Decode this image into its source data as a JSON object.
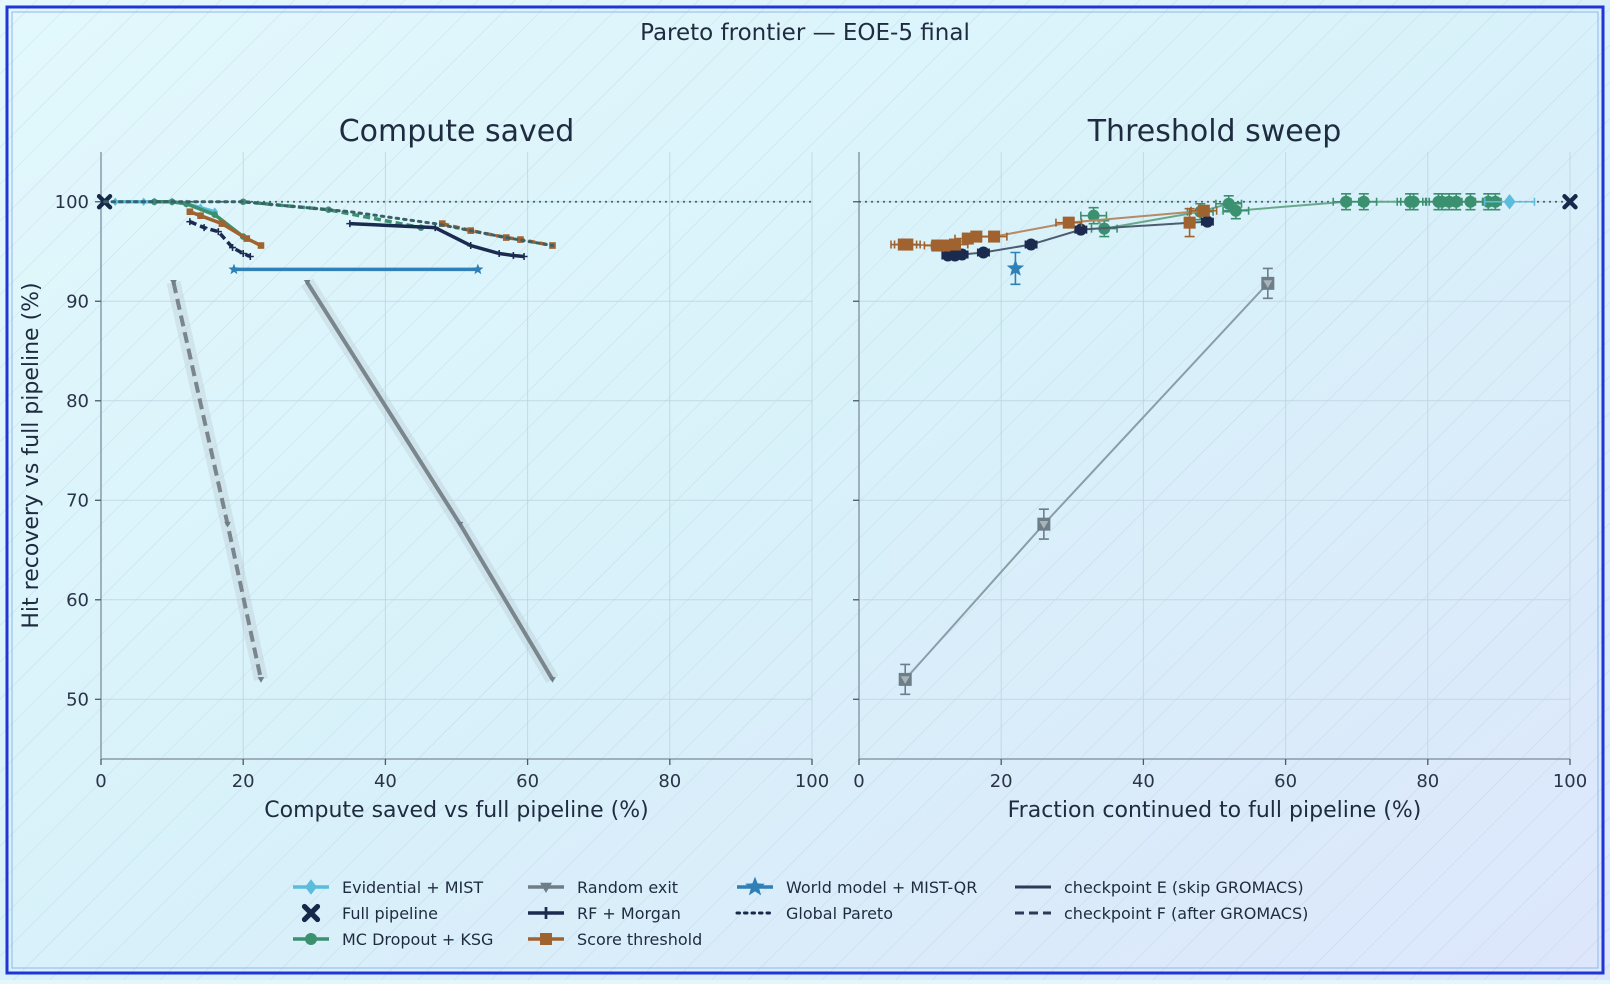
{
  "figure": {
    "title": "Pareto frontier — EOE-5 final",
    "colors": {
      "evidential": "#5bbcdc",
      "full": "#16294a",
      "mc": "#3b9070",
      "random": "#6e7e88",
      "rf": "#1b2b50",
      "score": "#a0622f",
      "world": "#2e80b6",
      "pareto": "#3a6068"
    }
  },
  "legend": [
    {
      "key": "evidential",
      "label": "Evidential + MIST",
      "marker": "diamond"
    },
    {
      "key": "full",
      "label": "Full pipeline",
      "marker": "x"
    },
    {
      "key": "mc",
      "label": "MC Dropout + KSG",
      "marker": "circle"
    },
    {
      "key": "random",
      "label": "Random exit",
      "marker": "triangle-down"
    },
    {
      "key": "rf",
      "label": "RF + Morgan",
      "marker": "plus"
    },
    {
      "key": "score",
      "label": "Score threshold",
      "marker": "square"
    },
    {
      "key": "world",
      "label": "World model + MIST-QR",
      "marker": "star"
    },
    {
      "key": "pareto",
      "label": "Global Pareto",
      "marker": "dotted"
    },
    {
      "key": "ckE",
      "label": "checkpoint E (skip GROMACS)",
      "marker": "solid"
    },
    {
      "key": "ckF",
      "label": "checkpoint F (after GROMACS)",
      "marker": "dashed"
    }
  ],
  "chart_data": [
    {
      "type": "line",
      "title": "Compute saved",
      "xlabel": "Compute saved vs full pipeline (%)",
      "ylabel": "Hit recovery vs full pipeline (%)",
      "xlim": [
        0,
        100
      ],
      "ylim": [
        44,
        105
      ],
      "xticks": [
        0,
        20,
        40,
        60,
        80,
        100
      ],
      "yticks": [
        50,
        60,
        70,
        80,
        90,
        100
      ],
      "reference_line_y": 100,
      "grid": true,
      "series": [
        {
          "key": "full",
          "marker": "x",
          "x": [
            0.5
          ],
          "y": [
            100
          ]
        },
        {
          "key": "evidential",
          "marker": "diamond",
          "x": [
            2,
            6,
            7.5,
            10,
            12,
            14,
            16
          ],
          "y": [
            100,
            100,
            100,
            100,
            99.8,
            99.4,
            99
          ]
        },
        {
          "key": "mc",
          "checkpoint": "E",
          "marker": "circle",
          "x": [
            7.5,
            10,
            12,
            16,
            20
          ],
          "y": [
            100,
            100,
            99.8,
            98.7,
            96.5
          ]
        },
        {
          "key": "mc",
          "checkpoint": "F",
          "marker": "circle",
          "x": [
            20,
            32,
            45
          ],
          "y": [
            100,
            99.2,
            97.4
          ]
        },
        {
          "key": "rf",
          "checkpoint": "F",
          "marker": "plus",
          "x": [
            12.5,
            14.5,
            16.5,
            18.5,
            20,
            21
          ],
          "y": [
            98,
            97.4,
            97,
            95.4,
            94.8,
            94.5
          ]
        },
        {
          "key": "rf",
          "checkpoint": "E",
          "marker": "plus",
          "x": [
            35,
            47,
            52,
            56,
            58,
            59.5
          ],
          "y": [
            97.8,
            97.4,
            95.6,
            94.8,
            94.6,
            94.5
          ]
        },
        {
          "key": "score",
          "checkpoint": "E",
          "marker": "square",
          "x": [
            12.5,
            14,
            17,
            20.5,
            22.5
          ],
          "y": [
            99,
            98.6,
            97.8,
            96.3,
            95.6
          ]
        },
        {
          "key": "score",
          "checkpoint": "F",
          "marker": "square",
          "x": [
            48,
            52,
            57,
            59,
            63.5
          ],
          "y": [
            97.8,
            97.1,
            96.4,
            96.2,
            95.6
          ]
        },
        {
          "key": "world",
          "marker": "star",
          "x": [
            18.7,
            53
          ],
          "y": [
            93.2,
            93.2
          ]
        },
        {
          "key": "random",
          "checkpoint": "F",
          "marker": "triangle-down",
          "x": [
            10.2,
            17.8,
            22.5
          ],
          "y": [
            91.9,
            67.6,
            52
          ]
        },
        {
          "key": "random",
          "checkpoint": "E",
          "marker": "triangle-down",
          "x": [
            29,
            50.5,
            63.5
          ],
          "y": [
            91.9,
            67.6,
            52
          ]
        },
        {
          "key": "pareto",
          "x": [
            0.5,
            7.5,
            20,
            35,
            47,
            52,
            57,
            63.5
          ],
          "y": [
            100,
            100,
            100,
            99,
            97.8,
            97.1,
            96.4,
            95.6
          ]
        }
      ]
    },
    {
      "type": "line",
      "title": "Threshold sweep",
      "xlabel": "Fraction continued to full pipeline (%)",
      "ylabel": "",
      "xlim": [
        0,
        100
      ],
      "ylim": [
        44,
        105
      ],
      "xticks": [
        0,
        20,
        40,
        60,
        80,
        100
      ],
      "yticks": [
        50,
        60,
        70,
        80,
        90,
        100
      ],
      "reference_line_y": 100,
      "grid": true,
      "series": [
        {
          "key": "full",
          "marker": "x",
          "x": [
            100
          ],
          "y": [
            100
          ]
        },
        {
          "key": "mc",
          "marker": "circle",
          "x": [
            33,
            34.5,
            48,
            52,
            53,
            68.5,
            71,
            77.5,
            78,
            81.5,
            82,
            83,
            84,
            86,
            88.5,
            89.5
          ],
          "y": [
            98.6,
            97.3,
            99,
            99.8,
            99.1,
            100,
            100,
            100,
            100,
            100,
            100,
            100,
            100,
            100,
            100,
            100
          ],
          "xerr": 1.8,
          "yerr": 0.8
        },
        {
          "key": "evidential",
          "marker": "diamond",
          "x": [
            91.5
          ],
          "y": [
            100
          ],
          "xerr": 3.5
        },
        {
          "key": "rf",
          "marker": "circle",
          "x": [
            12.5,
            13.5,
            14.5,
            17.5,
            24.2,
            31.2,
            49
          ],
          "y": [
            94.6,
            94.6,
            94.7,
            94.9,
            95.7,
            97.2,
            98
          ],
          "xerr": 0.8
        },
        {
          "key": "score",
          "marker": "square",
          "x": [
            6.3,
            6.8,
            11,
            12,
            13.5,
            15.3,
            16.5,
            19,
            29.5,
            48.5
          ],
          "y": [
            95.7,
            95.7,
            95.6,
            95.6,
            95.7,
            96.3,
            96.5,
            96.5,
            97.9,
            99.1
          ],
          "xerr": 1.8
        },
        {
          "key": "score",
          "marker": "square",
          "x": [
            46.5
          ],
          "y": [
            97.9
          ],
          "yerr": 1.4
        },
        {
          "key": "world",
          "marker": "star",
          "x": [
            22
          ],
          "y": [
            93.3
          ],
          "yerr": 1.6
        },
        {
          "key": "random",
          "marker": "triangle-down",
          "x": [
            6.5,
            26,
            57.5
          ],
          "y": [
            52,
            67.6,
            91.8
          ],
          "yerr": 1.5
        }
      ]
    }
  ]
}
